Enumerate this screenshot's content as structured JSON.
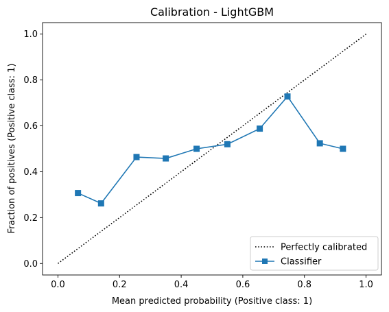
{
  "chart_data": {
    "type": "line",
    "title": "Calibration - LightGBM",
    "xlabel": "Mean predicted probability (Positive class: 1)",
    "ylabel": "Fraction of positives (Positive class: 1)",
    "xlim": [
      -0.05,
      1.05
    ],
    "ylim": [
      -0.05,
      1.05
    ],
    "xticks": [
      0.0,
      0.2,
      0.4,
      0.6,
      0.8,
      1.0
    ],
    "yticks": [
      0.0,
      0.2,
      0.4,
      0.6,
      0.8,
      1.0
    ],
    "xtick_labels": [
      "0.0",
      "0.2",
      "0.4",
      "0.6",
      "0.8",
      "1.0"
    ],
    "ytick_labels": [
      "0.0",
      "0.2",
      "0.4",
      "0.6",
      "0.8",
      "1.0"
    ],
    "legend_position": "lower-right",
    "series": [
      {
        "name": "Perfectly calibrated",
        "style": "dotted",
        "color": "#000000",
        "x": [
          0.0,
          1.0
        ],
        "y": [
          0.0,
          1.0
        ]
      },
      {
        "name": "Classifier",
        "style": "solid",
        "marker": "square",
        "color": "#1f77b4",
        "x": [
          0.065,
          0.14,
          0.255,
          0.35,
          0.45,
          0.55,
          0.655,
          0.745,
          0.85,
          0.925
        ],
        "y": [
          0.307,
          0.262,
          0.464,
          0.458,
          0.5,
          0.52,
          0.588,
          0.728,
          0.524,
          0.5
        ]
      }
    ]
  }
}
